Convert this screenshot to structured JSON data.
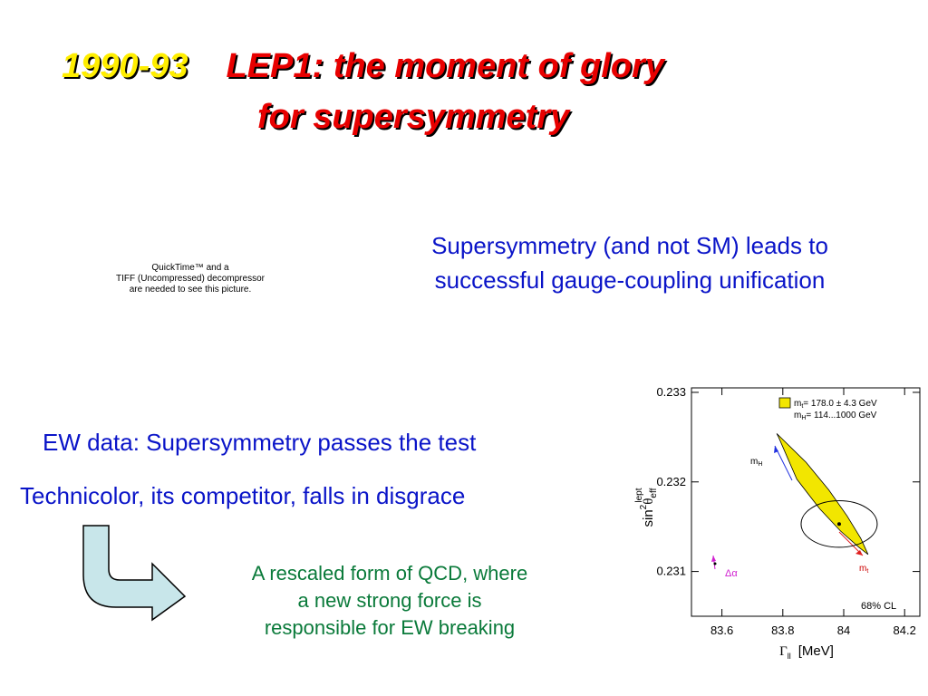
{
  "title": {
    "year": "1990-93",
    "line1": "LEP1: the moment of glory",
    "line2": "for supersymmetry"
  },
  "placeholder": [
    "QuickTime™ and a",
    "TIFF (Uncompressed) decompressor",
    "are needed to see this picture."
  ],
  "unification": [
    "Supersymmetry (and not SM) leads to",
    "successful gauge-coupling unification"
  ],
  "ew_test": "EW data: Supersymmetry passes the test",
  "technicolor": "Technicolor, its competitor, falls in disgrace",
  "qcd": [
    "A rescaled form of QCD, where",
    "a new strong force is",
    "responsible for EW breaking"
  ],
  "chart_data": {
    "type": "contour",
    "xlabel": {
      "symbol": "Γ",
      "sub": "ll",
      "unit": "[MeV]"
    },
    "ylabel": {
      "base": "sin",
      "sup": "2",
      "theta": "θ",
      "sub": "eff",
      "sup2": "lept"
    },
    "xlim": [
      83.5,
      84.25
    ],
    "ylim": [
      0.2305,
      0.23305
    ],
    "xticks": [
      83.6,
      83.8,
      84,
      84.2
    ],
    "yticks": [
      0.231,
      0.232,
      0.233
    ],
    "band": {
      "color": "#f2e600",
      "x": [
        83.78,
        83.876,
        83.951,
        84.011,
        84.056,
        84.08,
        84.05,
        83.99,
        83.921,
        83.846,
        83.786
      ],
      "y": [
        0.23254,
        0.23222,
        0.23191,
        0.23162,
        0.23137,
        0.23119,
        0.23127,
        0.23145,
        0.2317,
        0.23203,
        0.2325
      ]
    },
    "measurement": {
      "x": 83.985,
      "y": 0.23153,
      "rx": 0.125,
      "ry": 0.00026
    },
    "legend": {
      "mt": [
        "m",
        "t",
        "= 178.0 ± 4.3 GeV"
      ],
      "mh": [
        "m",
        "H",
        "= 114...1000 GeV"
      ]
    },
    "annotations": {
      "mh": [
        "m",
        "H"
      ],
      "mt": [
        "m",
        "t"
      ],
      "alpha": "Δα",
      "cl": "68% CL"
    }
  }
}
